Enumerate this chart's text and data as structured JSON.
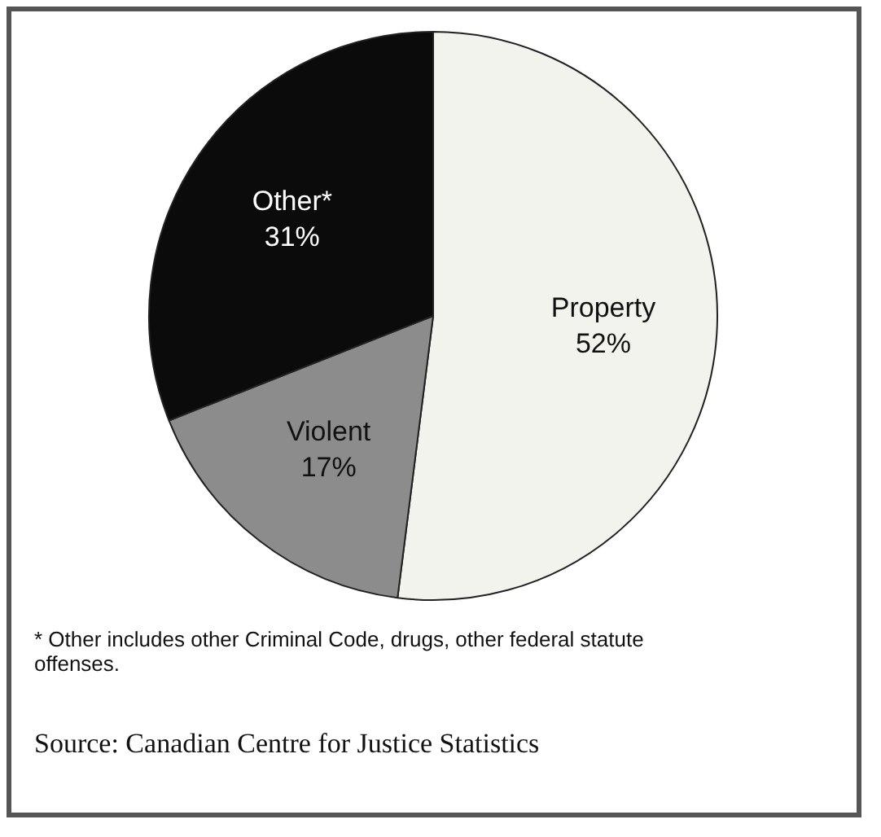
{
  "chart_data": {
    "type": "pie",
    "categories": [
      "Property",
      "Violent",
      "Other*"
    ],
    "values": [
      52,
      17,
      31
    ],
    "colors": [
      "#f3f3ee",
      "#8c8c8c",
      "#0b0b0b"
    ],
    "value_labels": [
      "52%",
      "17%",
      "31%"
    ],
    "legend": false,
    "annotations": [
      "* Other includes other Criminal Code, drugs, other federal statute offenses.",
      "Source: Canadian Centre for Justice Statistics"
    ]
  }
}
